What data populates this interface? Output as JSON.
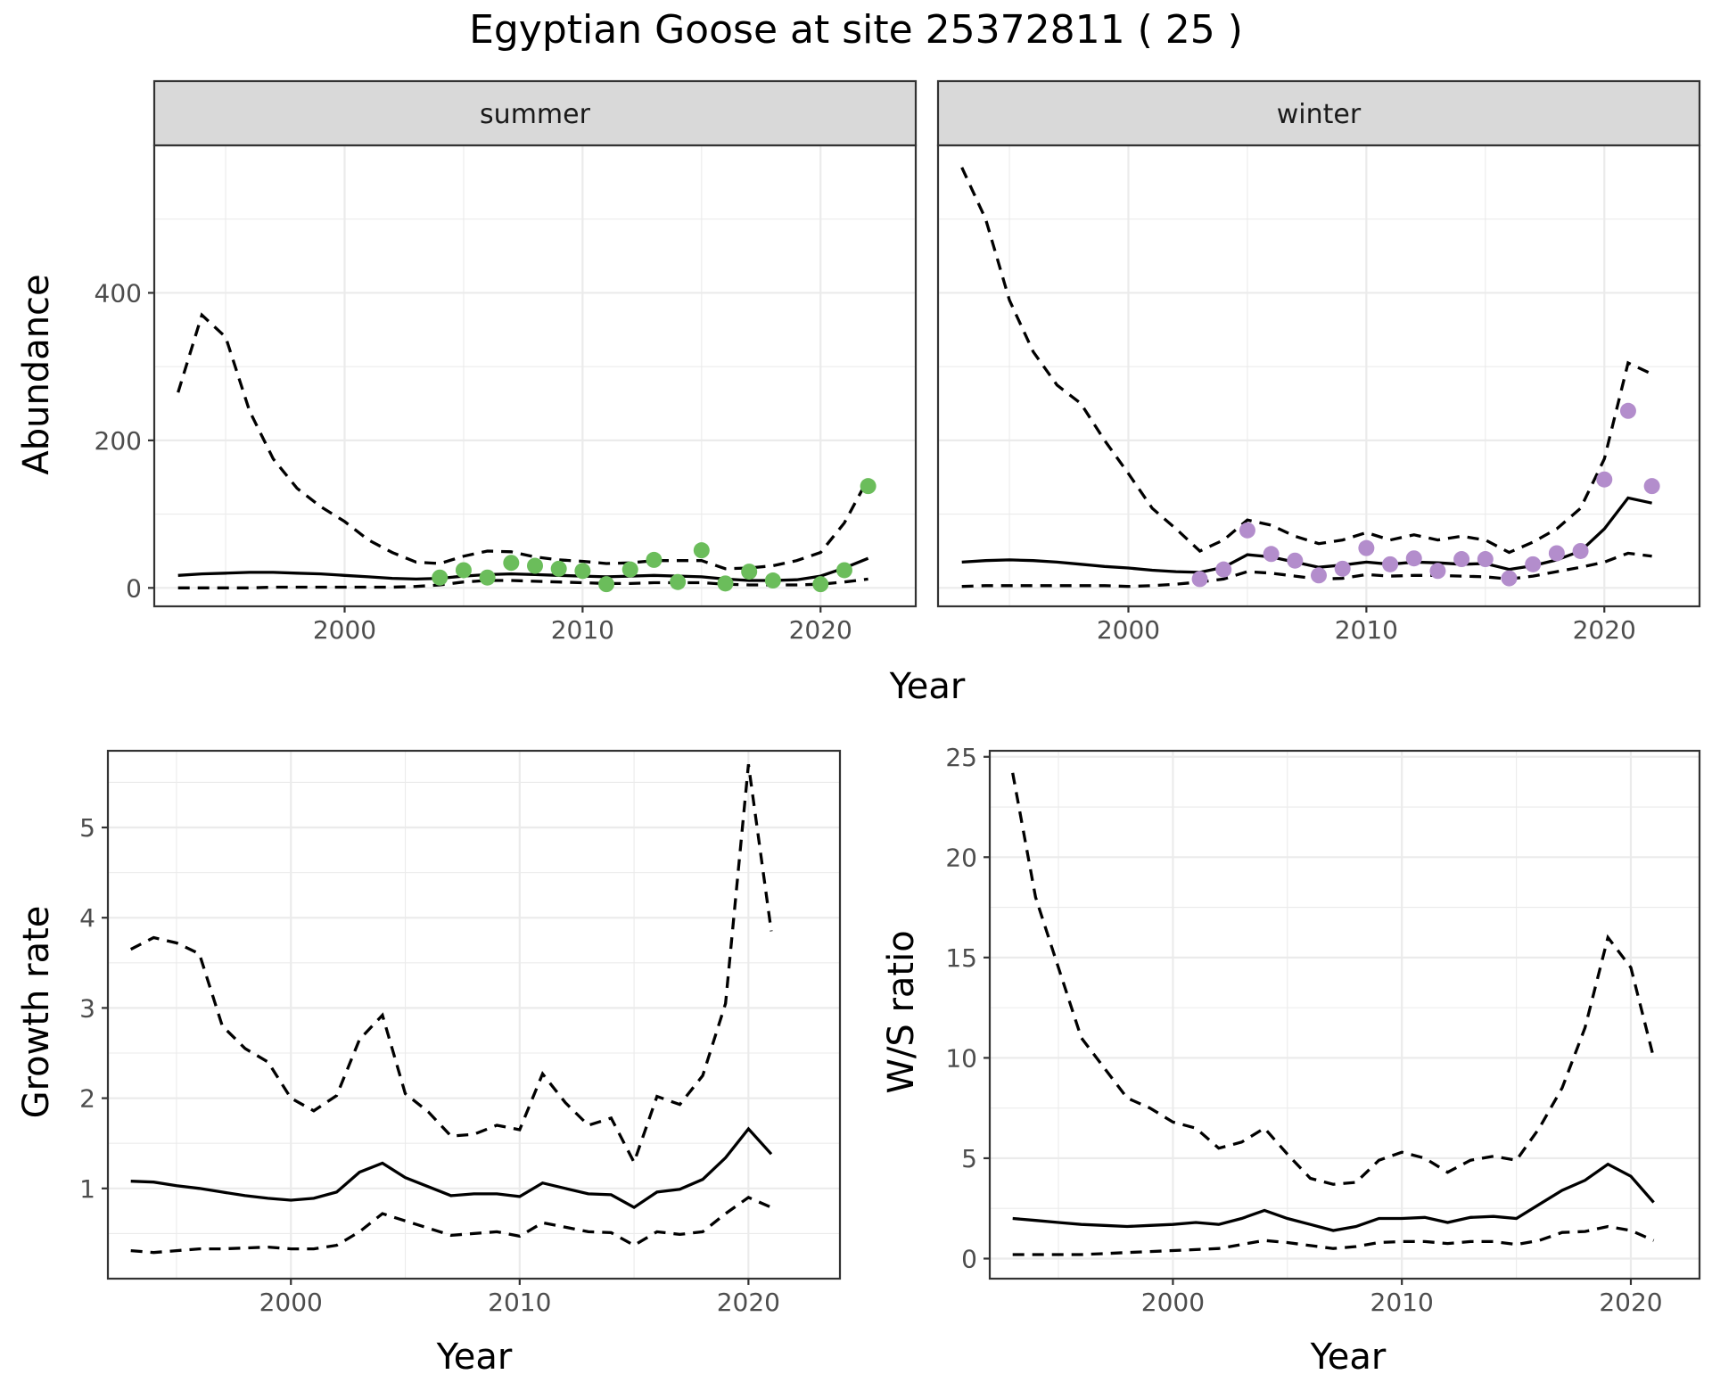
{
  "title": "Egyptian Goose at site 25372811 ( 25 )",
  "colors": {
    "summer": "#6bbd5b",
    "winter": "#b38dcc",
    "line": "#000000",
    "grid": "#ebebeb",
    "strip": "#d9d9d9"
  },
  "chart_data": [
    {
      "type": "line",
      "facet": "summer",
      "xlabel": "Year",
      "ylabel": "Abundance",
      "xlim": [
        1992,
        2024
      ],
      "ylim": [
        -25,
        600
      ],
      "x_ticks": [
        2000,
        2010,
        2020
      ],
      "y_ticks": [
        0,
        200,
        400
      ],
      "grid": true,
      "years": [
        1993,
        1994,
        1995,
        1996,
        1997,
        1998,
        1999,
        2000,
        2001,
        2002,
        2003,
        2004,
        2005,
        2006,
        2007,
        2008,
        2009,
        2010,
        2011,
        2012,
        2013,
        2014,
        2015,
        2016,
        2017,
        2018,
        2019,
        2020,
        2021,
        2022
      ],
      "series": [
        {
          "role": "mean",
          "style": "solid",
          "values": [
            17,
            19,
            20,
            21,
            21,
            20,
            19,
            17,
            15,
            13,
            12,
            13,
            16,
            18,
            19,
            18,
            17,
            16,
            15,
            16,
            17,
            16,
            15,
            12,
            10,
            10,
            11,
            16,
            27,
            40
          ]
        },
        {
          "role": "upper",
          "style": "dashed",
          "values": [
            265,
            370,
            340,
            240,
            175,
            135,
            110,
            90,
            65,
            48,
            35,
            33,
            43,
            50,
            49,
            42,
            38,
            36,
            33,
            34,
            37,
            37,
            37,
            26,
            27,
            30,
            37,
            48,
            88,
            148
          ]
        },
        {
          "role": "lower",
          "style": "dashed",
          "values": [
            0,
            0,
            0,
            0,
            1,
            1,
            1,
            1,
            1,
            1,
            2,
            4,
            8,
            10,
            10,
            9,
            8,
            7,
            6,
            6,
            7,
            7,
            7,
            5,
            4,
            4,
            4,
            5,
            8,
            12
          ]
        }
      ],
      "points": {
        "x": [
          2004,
          2005,
          2006,
          2007,
          2008,
          2009,
          2010,
          2011,
          2012,
          2013,
          2014,
          2015,
          2016,
          2017,
          2018,
          2019,
          2020,
          2021,
          2022
        ],
        "y": [
          14,
          24,
          14,
          34,
          30,
          26,
          23,
          5,
          25,
          38,
          8,
          51,
          6,
          22,
          10,
          null,
          5,
          24,
          138
        ]
      }
    },
    {
      "type": "line",
      "facet": "winter",
      "xlabel": "Year",
      "ylabel": "Abundance",
      "xlim": [
        1992,
        2024
      ],
      "ylim": [
        -25,
        600
      ],
      "x_ticks": [
        2000,
        2010,
        2020
      ],
      "y_ticks": [
        0,
        200,
        400
      ],
      "grid": true,
      "years": [
        1993,
        1994,
        1995,
        1996,
        1997,
        1998,
        1999,
        2000,
        2001,
        2002,
        2003,
        2004,
        2005,
        2006,
        2007,
        2008,
        2009,
        2010,
        2011,
        2012,
        2013,
        2014,
        2015,
        2016,
        2017,
        2018,
        2019,
        2020,
        2021,
        2022
      ],
      "series": [
        {
          "role": "mean",
          "style": "solid",
          "values": [
            35,
            37,
            38,
            37,
            35,
            32,
            29,
            27,
            24,
            22,
            21,
            28,
            45,
            42,
            35,
            28,
            31,
            35,
            32,
            35,
            34,
            32,
            33,
            25,
            30,
            38,
            50,
            80,
            122,
            115
          ]
        },
        {
          "role": "upper",
          "style": "dashed",
          "values": [
            570,
            500,
            390,
            320,
            275,
            250,
            200,
            155,
            108,
            80,
            50,
            65,
            92,
            85,
            70,
            60,
            65,
            75,
            65,
            72,
            65,
            70,
            65,
            48,
            62,
            80,
            108,
            175,
            305,
            290
          ]
        },
        {
          "role": "lower",
          "style": "dashed",
          "values": [
            2,
            3,
            3,
            3,
            3,
            3,
            3,
            2,
            3,
            5,
            8,
            12,
            22,
            20,
            16,
            12,
            13,
            18,
            16,
            17,
            17,
            16,
            15,
            12,
            16,
            22,
            28,
            35,
            47,
            43
          ]
        }
      ],
      "points": {
        "x": [
          2003,
          2004,
          2005,
          2006,
          2007,
          2008,
          2009,
          2010,
          2011,
          2012,
          2013,
          2014,
          2015,
          2016,
          2017,
          2018,
          2019,
          2020,
          2021,
          2022
        ],
        "y": [
          12,
          25,
          78,
          46,
          37,
          17,
          26,
          54,
          32,
          40,
          23,
          39,
          39,
          13,
          32,
          47,
          50,
          147,
          240,
          138
        ]
      }
    },
    {
      "type": "line",
      "xlabel": "Year",
      "ylabel": "Growth rate",
      "xlim": [
        1992,
        2024
      ],
      "ylim": [
        0.0,
        5.85
      ],
      "x_ticks": [
        2000,
        2010,
        2020
      ],
      "y_ticks": [
        1,
        2,
        3,
        4,
        5
      ],
      "grid": true,
      "years": [
        1993,
        1994,
        1995,
        1996,
        1997,
        1998,
        1999,
        2000,
        2001,
        2002,
        2003,
        2004,
        2005,
        2006,
        2007,
        2008,
        2009,
        2010,
        2011,
        2012,
        2013,
        2014,
        2015,
        2016,
        2017,
        2018,
        2019,
        2020,
        2021
      ],
      "series": [
        {
          "role": "mean",
          "style": "solid",
          "values": [
            1.08,
            1.07,
            1.03,
            1.0,
            0.96,
            0.92,
            0.89,
            0.87,
            0.89,
            0.96,
            1.18,
            1.28,
            1.12,
            1.02,
            0.92,
            0.94,
            0.94,
            0.91,
            1.06,
            1.0,
            0.94,
            0.93,
            0.79,
            0.96,
            0.99,
            1.1,
            1.34,
            1.66,
            1.38
          ]
        },
        {
          "role": "upper",
          "style": "dashed",
          "values": [
            3.65,
            3.78,
            3.72,
            3.6,
            2.8,
            2.55,
            2.4,
            2.0,
            1.86,
            2.03,
            2.65,
            2.92,
            2.05,
            1.85,
            1.58,
            1.6,
            1.7,
            1.65,
            2.27,
            1.95,
            1.7,
            1.78,
            1.29,
            2.02,
            1.93,
            2.25,
            3.05,
            5.7,
            3.85
          ]
        },
        {
          "role": "lower",
          "style": "dashed",
          "values": [
            0.31,
            0.29,
            0.31,
            0.33,
            0.33,
            0.34,
            0.35,
            0.33,
            0.33,
            0.37,
            0.52,
            0.72,
            0.64,
            0.56,
            0.48,
            0.5,
            0.52,
            0.47,
            0.62,
            0.57,
            0.52,
            0.51,
            0.37,
            0.52,
            0.49,
            0.52,
            0.72,
            0.9,
            0.79
          ]
        }
      ]
    },
    {
      "type": "line",
      "xlabel": "Year",
      "ylabel": "W/S ratio",
      "xlim": [
        1992,
        2023
      ],
      "ylim": [
        -1,
        25.3
      ],
      "x_ticks": [
        2000,
        2010,
        2020
      ],
      "y_ticks": [
        0,
        5,
        10,
        15,
        20,
        25
      ],
      "grid": true,
      "years": [
        1993,
        1994,
        1995,
        1996,
        1997,
        1998,
        1999,
        2000,
        2001,
        2002,
        2003,
        2004,
        2005,
        2006,
        2007,
        2008,
        2009,
        2010,
        2011,
        2012,
        2013,
        2014,
        2015,
        2016,
        2017,
        2018,
        2019,
        2020,
        2021
      ],
      "series": [
        {
          "role": "mean",
          "style": "solid",
          "values": [
            2.0,
            1.9,
            1.8,
            1.7,
            1.65,
            1.6,
            1.65,
            1.7,
            1.8,
            1.7,
            2.0,
            2.4,
            2.0,
            1.7,
            1.4,
            1.6,
            2.0,
            2.0,
            2.05,
            1.8,
            2.05,
            2.1,
            2.0,
            2.7,
            3.4,
            3.9,
            4.7,
            4.1,
            2.8
          ]
        },
        {
          "role": "upper",
          "style": "dashed",
          "values": [
            24.2,
            18.0,
            14.5,
            11.0,
            9.5,
            8.0,
            7.5,
            6.8,
            6.5,
            5.5,
            5.8,
            6.5,
            5.2,
            4.0,
            3.7,
            3.8,
            4.9,
            5.3,
            5.0,
            4.3,
            4.9,
            5.1,
            4.9,
            6.5,
            8.5,
            11.5,
            16.0,
            14.5,
            10.0
          ]
        },
        {
          "role": "lower",
          "style": "dashed",
          "values": [
            0.2,
            0.2,
            0.2,
            0.2,
            0.25,
            0.3,
            0.35,
            0.4,
            0.45,
            0.5,
            0.7,
            0.9,
            0.8,
            0.65,
            0.5,
            0.6,
            0.8,
            0.85,
            0.85,
            0.75,
            0.85,
            0.85,
            0.7,
            0.9,
            1.3,
            1.35,
            1.6,
            1.4,
            0.9
          ]
        }
      ]
    }
  ]
}
